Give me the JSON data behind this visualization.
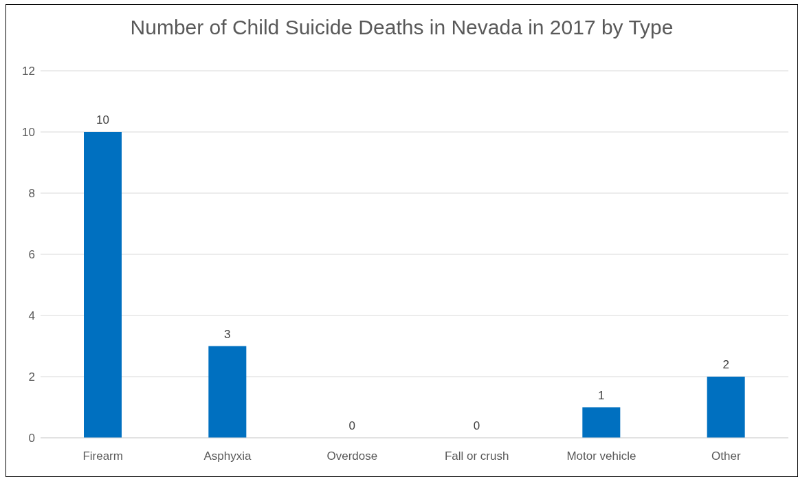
{
  "chart_data": {
    "type": "bar",
    "title": "Number of Child Suicide Deaths in Nevada in 2017 by Type",
    "categories": [
      "Firearm",
      "Asphyxia",
      "Overdose",
      "Fall or crush",
      "Motor vehicle",
      "Other"
    ],
    "values": [
      10,
      3,
      0,
      0,
      1,
      2
    ],
    "color": "#0070c0",
    "ylim": [
      0,
      12
    ],
    "yticks": [
      0,
      2,
      4,
      6,
      8,
      10,
      12
    ],
    "grid": "y",
    "data_labels": true,
    "legend": false
  }
}
